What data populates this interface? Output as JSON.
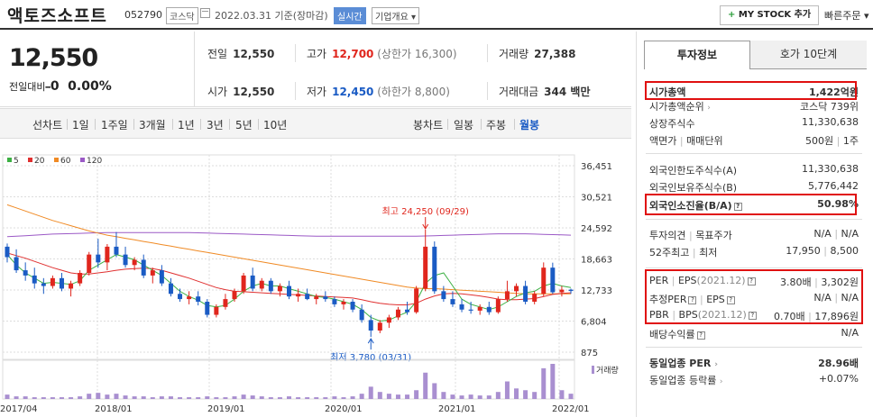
{
  "header": {
    "name": "액토즈소프트",
    "code": "052790",
    "market": "코스닥",
    "date": "2022.03.31 기준(장마감)",
    "realtime": "실시간",
    "overview": "기업개요",
    "mystock": "MY STOCK 추가",
    "mystock_plus": "+",
    "quick_order": "빠른주문"
  },
  "price": {
    "current": "12,550",
    "change_label": "전일대비",
    "change_value": "0",
    "change_dash": "━",
    "change_pct": "0.00%",
    "prev_label": "전일",
    "prev": "12,550",
    "open_label": "시가",
    "open": "12,550",
    "high_label": "고가",
    "high": "12,700",
    "upper_limit": "(상한가 16,300)",
    "low_label": "저가",
    "low": "12,450",
    "lower_limit": "(하한가 8,800)",
    "volume_label": "거래량",
    "volume": "27,388",
    "amount_label": "거래대금",
    "amount": "344 백만"
  },
  "toolbar": {
    "line_chart": "선차트",
    "periods": [
      "1일",
      "1주일",
      "3개월",
      "1년",
      "3년",
      "5년",
      "10년"
    ],
    "candle_chart": "봉차트",
    "candles": [
      "일봉",
      "주봉",
      "월봉"
    ],
    "active_candle": "월봉"
  },
  "right": {
    "tab1": "투자정보",
    "tab2": "호가 10단계",
    "rows": [
      {
        "k": "시가총액",
        "v": "1,422억원"
      },
      {
        "k": "시가총액순위",
        "v": "코스닥 739위"
      },
      {
        "k": "상장주식수",
        "v": "11,330,638"
      },
      {
        "k": "액면가",
        "k2": "매매단위",
        "v": "500원",
        "v2": "1주"
      },
      {
        "k": "외국인한도주식수(A)",
        "v": "11,330,638"
      },
      {
        "k": "외국인보유주식수(B)",
        "v": "5,776,442"
      },
      {
        "k": "외국인소진율(B/A)",
        "v": "50.98%"
      },
      {
        "k": "투자의견",
        "k2": "목표주가",
        "v": "N/A",
        "v2": "N/A"
      },
      {
        "k": "52주최고",
        "k2": "최저",
        "v": "17,950",
        "v2": "8,500"
      },
      {
        "k": "PER",
        "k2": "EPS",
        "k3": "(2021.12)",
        "v": "3.80배",
        "v2": "3,302원"
      },
      {
        "k": "추정PER",
        "k2": "EPS",
        "v": "N/A",
        "v2": "N/A"
      },
      {
        "k": "PBR",
        "k2": "BPS",
        "k3": "(2021.12)",
        "v": "0.70배",
        "v2": "17,896원"
      },
      {
        "k": "배당수익률",
        "v": "N/A"
      },
      {
        "k": "동일업종 PER",
        "v": "28.96배"
      },
      {
        "k": "동일업종 등락률",
        "v": "+0.07%"
      }
    ]
  },
  "chart_data": {
    "type": "candlestick",
    "legend": [
      {
        "name": "5",
        "color": "#3cb043"
      },
      {
        "name": "20",
        "color": "#e03030"
      },
      {
        "name": "60",
        "color": "#f08a24"
      },
      {
        "name": "120",
        "color": "#9b59c6"
      }
    ],
    "y_ticks": [
      "36,451",
      "30,521",
      "24,592",
      "18,663",
      "12,733",
      "6,804",
      "875"
    ],
    "x_ticks": [
      "2017/04",
      "2018/01",
      "2019/01",
      "2020/01",
      "2021/01",
      "2022/01"
    ],
    "high_note": "최고 24,250 (09/29)",
    "low_note": "최저 3,780 (03/31)",
    "volume_label": "거래량",
    "candles": [
      [
        21000,
        21600,
        18000,
        19000
      ],
      [
        19000,
        20500,
        16000,
        16500
      ],
      [
        16500,
        18000,
        14500,
        15500
      ],
      [
        15500,
        17000,
        13000,
        14000
      ],
      [
        14000,
        15000,
        12000,
        13500
      ],
      [
        13500,
        15500,
        13000,
        15000
      ],
      [
        15000,
        16000,
        12500,
        13000
      ],
      [
        13000,
        14500,
        11500,
        14000
      ],
      [
        14000,
        16500,
        13500,
        16000
      ],
      [
        16000,
        20000,
        15500,
        19500
      ],
      [
        19500,
        22500,
        17000,
        18000
      ],
      [
        18000,
        21500,
        16500,
        21000
      ],
      [
        21000,
        23800,
        19000,
        19500
      ],
      [
        19500,
        21000,
        17000,
        17500
      ],
      [
        17500,
        19000,
        16500,
        18500
      ],
      [
        18500,
        19500,
        15000,
        15500
      ],
      [
        15500,
        17000,
        14000,
        16500
      ],
      [
        16500,
        17500,
        13500,
        14000
      ],
      [
        14000,
        15000,
        11500,
        12000
      ],
      [
        12000,
        13000,
        10500,
        11000
      ],
      [
        11000,
        12500,
        10000,
        11500
      ],
      [
        11500,
        12500,
        9800,
        10500
      ],
      [
        10500,
        11000,
        7500,
        8000
      ],
      [
        8000,
        10000,
        7500,
        9500
      ],
      [
        9500,
        12000,
        9000,
        11000
      ],
      [
        11000,
        13000,
        10500,
        12500
      ],
      [
        12500,
        16000,
        12000,
        15500
      ],
      [
        15500,
        17000,
        12500,
        13000
      ],
      [
        13000,
        15000,
        12500,
        14500
      ],
      [
        14500,
        15000,
        12000,
        12500
      ],
      [
        12500,
        14000,
        11500,
        13500
      ],
      [
        13500,
        14500,
        11000,
        11500
      ],
      [
        11500,
        13000,
        10500,
        12000
      ],
      [
        12000,
        13000,
        10800,
        11000
      ],
      [
        11000,
        12000,
        10000,
        11500
      ],
      [
        11500,
        12500,
        10500,
        11000
      ],
      [
        11000,
        11500,
        9500,
        10000
      ],
      [
        10000,
        11000,
        9000,
        10500
      ],
      [
        10500,
        11000,
        8500,
        9000
      ],
      [
        9000,
        10000,
        6500,
        7000
      ],
      [
        7000,
        8000,
        3780,
        5000
      ],
      [
        5000,
        7000,
        4500,
        6500
      ],
      [
        6500,
        8000,
        5500,
        7500
      ],
      [
        7500,
        9500,
        7000,
        9000
      ],
      [
        9000,
        10500,
        8000,
        8500
      ],
      [
        8500,
        13500,
        8200,
        13000
      ],
      [
        13000,
        24250,
        12500,
        21000
      ],
      [
        21000,
        22000,
        12000,
        12500
      ],
      [
        12500,
        13500,
        10500,
        11000
      ],
      [
        11000,
        12500,
        9500,
        10000
      ],
      [
        10000,
        11000,
        8500,
        9000
      ],
      [
        9000,
        10500,
        8200,
        8800
      ],
      [
        8800,
        10000,
        8000,
        9500
      ],
      [
        9500,
        10500,
        8000,
        8500
      ],
      [
        8500,
        11500,
        8200,
        11000
      ],
      [
        11000,
        14500,
        10500,
        12500
      ],
      [
        12500,
        14000,
        11500,
        13500
      ],
      [
        13500,
        14500,
        10000,
        10500
      ],
      [
        10500,
        12500,
        10000,
        12000
      ],
      [
        12000,
        18000,
        11500,
        17000
      ],
      [
        17000,
        17950,
        12000,
        12300
      ],
      [
        12300,
        13500,
        11500,
        12800
      ],
      [
        12800,
        13000,
        12000,
        12550
      ]
    ],
    "ma5": [
      19500,
      17500,
      16000,
      15000,
      14000,
      14200,
      14000,
      13800,
      14500,
      16500,
      17500,
      18500,
      19500,
      19000,
      18500,
      17500,
      16500,
      15500,
      14000,
      12500,
      11500,
      10800,
      9800,
      9500,
      9800,
      11000,
      12500,
      13500,
      14000,
      13500,
      13500,
      13000,
      12500,
      12000,
      11500,
      11300,
      11000,
      10500,
      10000,
      9000,
      7500,
      6800,
      7000,
      7800,
      8500,
      10500,
      14000,
      15500,
      16000,
      13500,
      11000,
      10000,
      9500,
      9000,
      9500,
      10500,
      11500,
      12200,
      12500,
      13500,
      14000,
      13500,
      13200
    ],
    "ma20": [
      19800,
      19300,
      18800,
      18200,
      17600,
      17000,
      16500,
      16000,
      15800,
      15800,
      16000,
      16200,
      16500,
      16700,
      16800,
      16900,
      16800,
      16500,
      16000,
      15500,
      15000,
      14400,
      13800,
      13200,
      12800,
      12500,
      12400,
      12300,
      12200,
      12100,
      12000,
      11900,
      11800,
      11700,
      11600,
      11500,
      11400,
      11300,
      11200,
      10900,
      10500,
      10200,
      10000,
      9900,
      9900,
      10200,
      11000,
      11600,
      12000,
      12100,
      12000,
      11800,
      11600,
      11300,
      11000,
      10900,
      10900,
      11000,
      11100,
      11500,
      11900,
      12100,
      12200
    ],
    "ma60": [
      29000,
      28400,
      27800,
      27200,
      26600,
      26000,
      25500,
      25000,
      24500,
      24000,
      23600,
      23200,
      22900,
      22600,
      22300,
      22000,
      21700,
      21400,
      21100,
      20800,
      20500,
      20200,
      19900,
      19600,
      19300,
      19000,
      18700,
      18400,
      18100,
      17800,
      17500,
      17200,
      16900,
      16600,
      16300,
      16000,
      15700,
      15400,
      15100,
      14800,
      14500,
      14200,
      13900,
      13600,
      13300,
      13100,
      13000,
      13000,
      12900,
      12800,
      12700,
      12600,
      12500,
      12400,
      12300,
      12200,
      12100,
      12000,
      12000,
      12000,
      12000,
      12000,
      12000
    ],
    "ma120": [
      22900,
      23000,
      23100,
      23200,
      23300,
      23400,
      23450,
      23500,
      23550,
      23600,
      23650,
      23700,
      23700,
      23700,
      23700,
      23700,
      23700,
      23700,
      23700,
      23700,
      23700,
      23650,
      23600,
      23550,
      23500,
      23450,
      23400,
      23350,
      23300,
      23250,
      23200,
      23150,
      23100,
      23050,
      23000,
      23000,
      23000,
      23000,
      23000,
      23000,
      23000,
      23000,
      23000,
      23000,
      23000,
      23000,
      23050,
      23100,
      23150,
      23200,
      23250,
      23300,
      23350,
      23400,
      23450,
      23450,
      23450,
      23450,
      23400,
      23350,
      23300,
      23250,
      23200
    ],
    "volume": [
      5,
      3,
      3,
      2,
      2,
      2,
      2,
      2,
      3,
      6,
      7,
      5,
      6,
      4,
      3,
      3,
      2,
      3,
      3,
      2,
      2,
      2,
      3,
      2,
      2,
      3,
      5,
      4,
      3,
      2,
      2,
      3,
      2,
      2,
      2,
      2,
      3,
      2,
      3,
      6,
      14,
      8,
      6,
      5,
      5,
      10,
      30,
      18,
      8,
      5,
      4,
      5,
      4,
      4,
      8,
      20,
      12,
      10,
      8,
      35,
      40,
      10,
      6
    ]
  }
}
